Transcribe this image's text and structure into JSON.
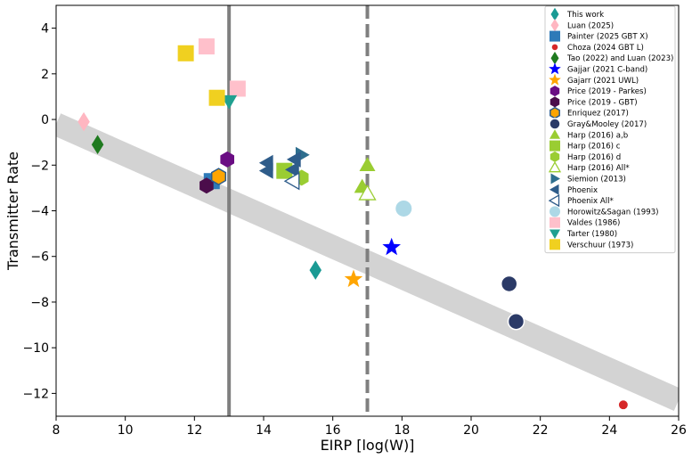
{
  "chart_data": {
    "type": "scatter",
    "xlabel": "EIRP [log(W)]",
    "ylabel": "Transmitter Rate",
    "xlim": [
      8,
      26
    ],
    "ylim": [
      -13,
      5
    ],
    "xticks": [
      8,
      10,
      12,
      14,
      16,
      18,
      20,
      22,
      24,
      26
    ],
    "yticks": [
      4,
      2,
      0,
      -2,
      -4,
      -6,
      -8,
      -10,
      -12
    ],
    "grid": false,
    "legend_position": "top-right",
    "band": {
      "color": "#d3d3d3",
      "x": [
        8,
        26
      ],
      "y": [
        -0.2,
        -12.3
      ]
    },
    "vlines": [
      {
        "x": 13.0,
        "style": "solid",
        "color": "#7f7f7f"
      },
      {
        "x": 17.0,
        "style": "dashed",
        "color": "#7f7f7f"
      }
    ],
    "series": [
      {
        "name": "This work",
        "marker": "diamond",
        "color": "#1a9a94",
        "points": [
          [
            15.5,
            -6.6
          ]
        ]
      },
      {
        "name": "Luan (2025)",
        "marker": "diamond",
        "color": "#ffb6c1",
        "points": [
          [
            8.8,
            -0.1
          ]
        ]
      },
      {
        "name": "Painter (2025 GBT X)",
        "marker": "square",
        "color": "#2e7ab8",
        "points": [
          [
            12.5,
            -2.7
          ]
        ]
      },
      {
        "name": "Choza (2024 GBT L)",
        "marker": "circle-small",
        "color": "#d62728",
        "points": [
          [
            24.4,
            -12.5
          ]
        ]
      },
      {
        "name": "Tao (2022) and Luan (2023)",
        "marker": "diamond",
        "color": "#1f7a1f",
        "points": [
          [
            9.2,
            -1.1
          ]
        ]
      },
      {
        "name": "Gajjar (2021 C-band)",
        "marker": "star",
        "color": "#0000ff",
        "points": [
          [
            17.7,
            -5.6
          ]
        ]
      },
      {
        "name": "Gajarr (2021 UWL)",
        "marker": "star",
        "color": "#ffa500",
        "points": [
          [
            16.6,
            -7.0
          ]
        ]
      },
      {
        "name": "Price (2019 - Parkes)",
        "marker": "hexagon",
        "color": "#6a0d83",
        "points": [
          [
            12.95,
            -1.75
          ]
        ]
      },
      {
        "name": "Price (2019 - GBT)",
        "marker": "hexagon",
        "color": "#4b0d4b",
        "points": [
          [
            12.35,
            -2.9
          ]
        ]
      },
      {
        "name": "Enriquez (2017)",
        "marker": "hexagon",
        "color": "#ffa500",
        "edge": "#2e5c8a",
        "points": [
          [
            12.7,
            -2.5
          ]
        ]
      },
      {
        "name": "Gray&Mooley (2017)",
        "marker": "circle",
        "color": "#2b3a67",
        "edge": "#ffffff",
        "points": [
          [
            21.1,
            -7.2
          ],
          [
            21.3,
            -8.85
          ]
        ]
      },
      {
        "name": "Harp (2016) a,b",
        "marker": "triangle-up",
        "color": "#9acd32",
        "points": [
          [
            17.0,
            -2.0
          ],
          [
            16.85,
            -2.95
          ]
        ]
      },
      {
        "name": "Harp (2016) c",
        "marker": "square",
        "color": "#9acd32",
        "points": [
          [
            14.6,
            -2.25
          ]
        ]
      },
      {
        "name": "Harp (2016) d",
        "marker": "hexagon",
        "color": "#9acd32",
        "points": [
          [
            15.1,
            -2.55
          ]
        ]
      },
      {
        "name": "Harp (2016) All*",
        "marker": "triangle-up-open",
        "color": "#9acd32",
        "points": [
          [
            17.0,
            -3.25
          ]
        ]
      },
      {
        "name": "Siemion (2013)",
        "marker": "triangle-right",
        "color": "#2e6e8e",
        "points": [
          [
            15.1,
            -1.55
          ]
        ]
      },
      {
        "name": "Phoenix",
        "marker": "triangle-left",
        "color": "#2e5c8a",
        "points": [
          [
            14.1,
            -1.9
          ],
          [
            14.1,
            -2.25
          ],
          [
            14.9,
            -1.75
          ],
          [
            14.85,
            -2.2
          ]
        ]
      },
      {
        "name": "Phoenix All*",
        "marker": "triangle-left-open",
        "color": "#2e5c8a",
        "points": [
          [
            14.85,
            -2.7
          ]
        ]
      },
      {
        "name": "Horowitz&Sagan (1993)",
        "marker": "circle",
        "color": "#add8e6",
        "points": [
          [
            18.05,
            -3.9
          ]
        ]
      },
      {
        "name": "Valdes (1986)",
        "marker": "square",
        "color": "#ffc0cb",
        "points": [
          [
            12.35,
            3.2
          ],
          [
            13.25,
            1.35
          ]
        ]
      },
      {
        "name": "Tarter (1980)",
        "marker": "triangle-down",
        "color": "#20a090",
        "points": [
          [
            13.0,
            0.8
          ]
        ]
      },
      {
        "name": "Verschuur (1973)",
        "marker": "square",
        "color": "#f0d020",
        "points": [
          [
            11.75,
            2.9
          ],
          [
            12.65,
            0.95
          ]
        ]
      }
    ]
  }
}
